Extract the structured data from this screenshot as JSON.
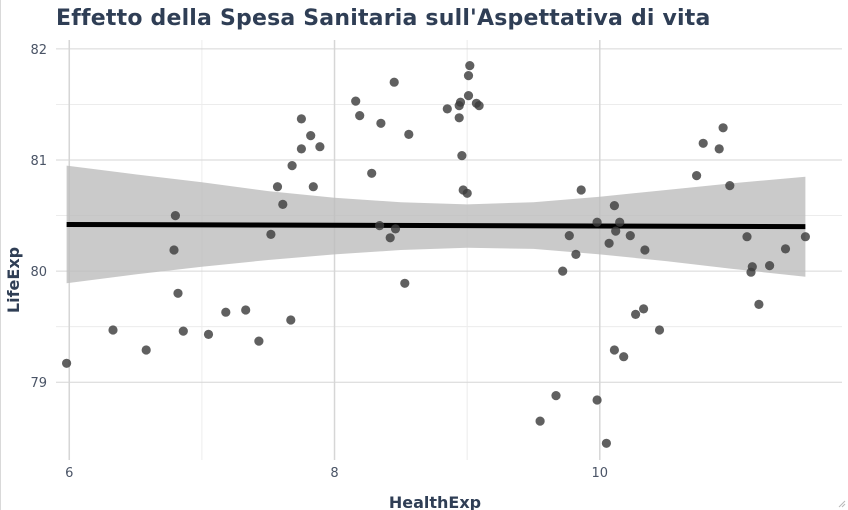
{
  "chart_data": {
    "type": "scatter",
    "title": "Effetto della Spesa Sanitaria sull'Aspettativa di vita",
    "xlabel": "HealthExp",
    "ylabel": "LifeExp",
    "xlim": [
      5.9,
      11.6
    ],
    "ylim": [
      78.3,
      82.08
    ],
    "xticks": [
      6,
      8,
      10
    ],
    "yticks": [
      79,
      80,
      81,
      82
    ],
    "grid": true,
    "legend": "none",
    "points": {
      "x": [
        5.98,
        6.33,
        6.58,
        6.79,
        6.8,
        6.82,
        6.86,
        7.05,
        7.18,
        7.33,
        7.43,
        7.52,
        7.57,
        7.61,
        7.67,
        7.68,
        7.75,
        7.75,
        7.82,
        7.84,
        7.89,
        8.16,
        8.19,
        8.28,
        8.34,
        8.35,
        8.42,
        8.45,
        8.46,
        8.53,
        8.56,
        8.85,
        8.94,
        8.94,
        8.95,
        8.96,
        8.97,
        9.0,
        9.01,
        9.01,
        9.02,
        9.07,
        9.09,
        9.55,
        9.67,
        9.72,
        9.77,
        9.82,
        9.86,
        9.98,
        9.98,
        10.05,
        10.07,
        10.11,
        10.11,
        10.12,
        10.15,
        10.18,
        10.23,
        10.27,
        10.33,
        10.34,
        10.45,
        10.73,
        10.78,
        10.9,
        10.93,
        10.98,
        11.11,
        11.14,
        11.15,
        11.2,
        11.28,
        11.4,
        11.55
      ],
      "y": [
        79.17,
        79.47,
        79.29,
        80.19,
        80.5,
        79.8,
        79.46,
        79.43,
        79.63,
        79.65,
        79.37,
        80.33,
        80.76,
        80.6,
        79.56,
        80.95,
        81.37,
        81.1,
        81.22,
        80.76,
        81.12,
        81.53,
        81.4,
        80.88,
        80.41,
        81.33,
        80.3,
        81.7,
        80.38,
        79.89,
        81.23,
        81.46,
        81.38,
        81.49,
        81.52,
        81.04,
        80.73,
        80.7,
        81.58,
        81.76,
        81.85,
        81.51,
        81.49,
        78.65,
        78.88,
        80.0,
        80.32,
        80.15,
        80.73,
        78.84,
        80.44,
        78.45,
        80.25,
        80.59,
        79.29,
        80.36,
        80.44,
        79.23,
        80.32,
        79.61,
        79.66,
        80.19,
        79.47,
        80.86,
        81.15,
        81.1,
        81.29,
        80.77,
        80.31,
        79.99,
        80.04,
        79.7,
        80.05,
        80.2,
        80.31
      ]
    },
    "trend_line": {
      "x": [
        5.98,
        11.55
      ],
      "y": [
        80.42,
        80.4
      ]
    },
    "confidence_band": {
      "x": [
        5.98,
        6.5,
        7.0,
        7.5,
        8.0,
        8.5,
        9.0,
        9.5,
        10.0,
        10.5,
        11.0,
        11.55
      ],
      "upper": [
        80.95,
        80.87,
        80.8,
        80.72,
        80.66,
        80.62,
        80.6,
        80.62,
        80.67,
        80.73,
        80.79,
        80.85
      ],
      "lower": [
        79.89,
        79.97,
        80.04,
        80.1,
        80.15,
        80.19,
        80.21,
        80.2,
        80.15,
        80.09,
        80.02,
        79.95
      ]
    },
    "colors": {
      "point": "#3d3d3d",
      "trend": "#000000",
      "band": "#bdbdbd",
      "grid_major": "#d6d6d6",
      "grid_minor": "#ececec",
      "title": "#2f3e55",
      "tick_text": "#4a5466"
    }
  }
}
